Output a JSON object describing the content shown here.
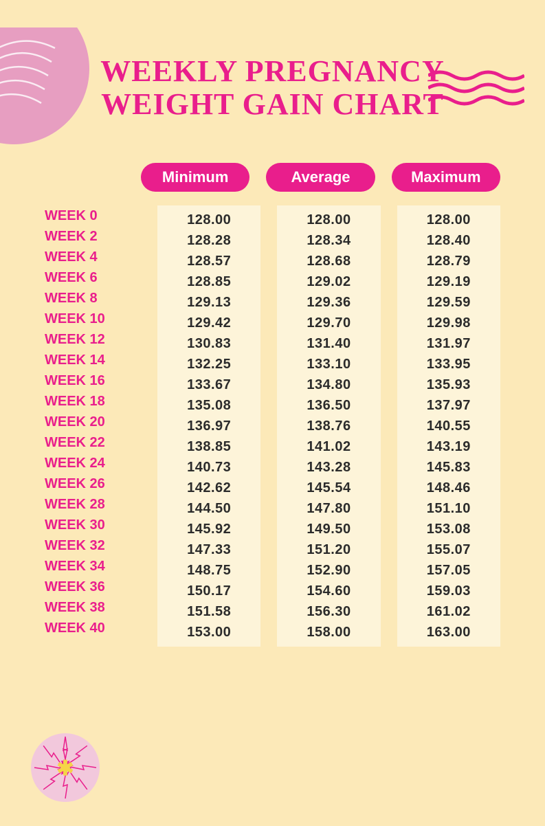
{
  "title_line1": "WEEKLY PREGNANCY",
  "title_line2": "WEIGHT GAIN CHART",
  "colors": {
    "background": "#fce9b8",
    "accent": "#e91e8c",
    "column_bg": "#fdf4d9",
    "text": "#2b2b2b",
    "decor_pink": "#e79ec1",
    "decor_pink_light": "#f2c8dc"
  },
  "headers": [
    "Minimum",
    "Average",
    "Maximum"
  ],
  "weeks": [
    "WEEK 0",
    "WEEK 2",
    "WEEK 4",
    "WEEK 6",
    "WEEK 8",
    "WEEK 10",
    "WEEK 12",
    "WEEK 14",
    "WEEK 16",
    "WEEK 18",
    "WEEK 20",
    "WEEK 22",
    "WEEK 24",
    "WEEK 26",
    "WEEK 28",
    "WEEK 30",
    "WEEK 32",
    "WEEK 34",
    "WEEK 36",
    "WEEK 38",
    "WEEK 40"
  ],
  "minimum": [
    "128.00",
    "128.28",
    "128.57",
    "128.85",
    "129.13",
    "129.42",
    "130.83",
    "132.25",
    "133.67",
    "135.08",
    "136.97",
    "138.85",
    "140.73",
    "142.62",
    "144.50",
    "145.92",
    "147.33",
    "148.75",
    "150.17",
    "151.58",
    "153.00"
  ],
  "average": [
    "128.00",
    "128.34",
    "128.68",
    "129.02",
    "129.36",
    "129.70",
    "131.40",
    "133.10",
    "134.80",
    "136.50",
    "138.76",
    "141.02",
    "143.28",
    "145.54",
    "147.80",
    "149.50",
    "151.20",
    "152.90",
    "154.60",
    "156.30",
    "158.00"
  ],
  "maximum": [
    "128.00",
    "128.40",
    "128.79",
    "129.19",
    "129.59",
    "129.98",
    "131.97",
    "133.95",
    "135.93",
    "137.97",
    "140.55",
    "143.19",
    "145.83",
    "148.46",
    "151.10",
    "153.08",
    "155.07",
    "157.05",
    "159.03",
    "161.02",
    "163.00"
  ],
  "typography": {
    "title_fontsize": 44,
    "header_fontsize": 22,
    "label_fontsize": 20,
    "value_fontsize": 20
  }
}
